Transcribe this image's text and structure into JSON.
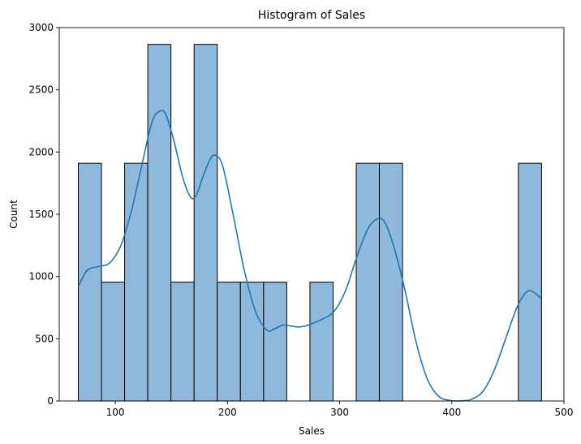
{
  "chart_data": {
    "type": "bar",
    "title": "Histogram of Sales",
    "xlabel": "Sales",
    "ylabel": "Count",
    "xlim": [
      50,
      500
    ],
    "ylim": [
      0,
      3000
    ],
    "xticks": [
      100,
      200,
      300,
      400,
      500
    ],
    "yticks": [
      0,
      500,
      1000,
      1500,
      2000,
      2500,
      3000
    ],
    "bin_edges": [
      67,
      87.65,
      108.3,
      128.95,
      149.6,
      170.25,
      190.9,
      211.55,
      232.2,
      252.85,
      273.5,
      294.15,
      314.8,
      335.45,
      356.1,
      376.75,
      397.4,
      418.05,
      438.7,
      459.35,
      480
    ],
    "counts": [
      1910,
      955,
      1910,
      2865,
      955,
      2865,
      955,
      955,
      955,
      0,
      955,
      0,
      1910,
      1910,
      0,
      0,
      0,
      0,
      0,
      1910
    ],
    "kde": [
      [
        67,
        920
      ],
      [
        75,
        1050
      ],
      [
        85,
        1080
      ],
      [
        95,
        1110
      ],
      [
        105,
        1250
      ],
      [
        115,
        1550
      ],
      [
        125,
        1950
      ],
      [
        133,
        2250
      ],
      [
        140,
        2330
      ],
      [
        145,
        2300
      ],
      [
        152,
        2100
      ],
      [
        160,
        1800
      ],
      [
        167,
        1640
      ],
      [
        172,
        1650
      ],
      [
        178,
        1800
      ],
      [
        185,
        1950
      ],
      [
        190,
        1970
      ],
      [
        196,
        1880
      ],
      [
        205,
        1500
      ],
      [
        215,
        1050
      ],
      [
        225,
        720
      ],
      [
        235,
        570
      ],
      [
        242,
        580
      ],
      [
        250,
        610
      ],
      [
        258,
        600
      ],
      [
        265,
        595
      ],
      [
        275,
        620
      ],
      [
        285,
        660
      ],
      [
        295,
        720
      ],
      [
        305,
        880
      ],
      [
        315,
        1150
      ],
      [
        325,
        1380
      ],
      [
        333,
        1460
      ],
      [
        340,
        1440
      ],
      [
        348,
        1250
      ],
      [
        358,
        900
      ],
      [
        368,
        480
      ],
      [
        378,
        180
      ],
      [
        388,
        40
      ],
      [
        398,
        5
      ],
      [
        410,
        2
      ],
      [
        418,
        15
      ],
      [
        428,
        80
      ],
      [
        438,
        250
      ],
      [
        448,
        500
      ],
      [
        458,
        750
      ],
      [
        466,
        870
      ],
      [
        472,
        880
      ],
      [
        480,
        820
      ]
    ],
    "colors": {
      "bar_fill": "#8fb9dc",
      "bar_edge": "#000000",
      "kde_line": "#1f77b4"
    },
    "grid": false
  }
}
